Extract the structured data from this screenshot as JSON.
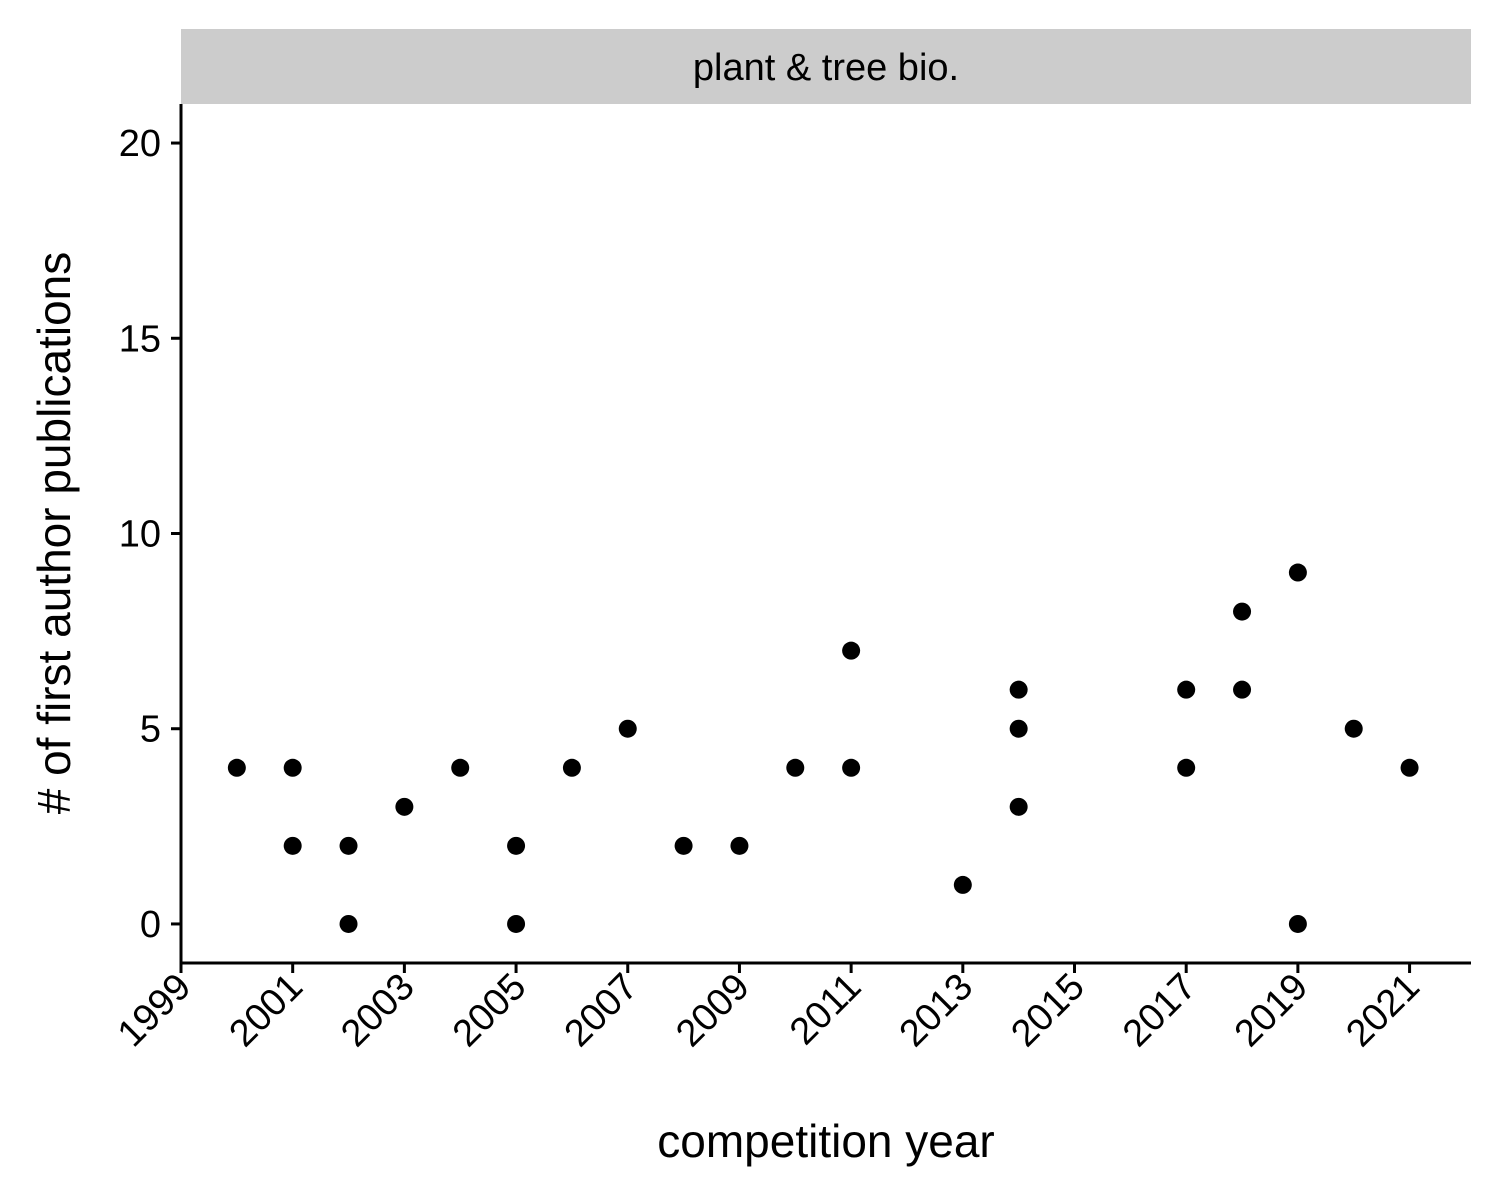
{
  "chart_data": {
    "type": "scatter",
    "facet_title": "plant & tree bio.",
    "xlabel": "competition year",
    "ylabel": "# of first author publications",
    "xlim": [
      1999,
      2022.1
    ],
    "ylim": [
      -1,
      21
    ],
    "x_ticks": [
      1999,
      2001,
      2003,
      2005,
      2007,
      2009,
      2011,
      2013,
      2015,
      2017,
      2019,
      2021
    ],
    "x_tick_labels": [
      "1999",
      "2001",
      "2003",
      "2005",
      "2007",
      "2009",
      "2011",
      "2013",
      "2015",
      "2017",
      "2019",
      "2021"
    ],
    "y_ticks": [
      0,
      5,
      10,
      15,
      20
    ],
    "y_tick_labels": [
      "0",
      "5",
      "10",
      "15",
      "20"
    ],
    "points": [
      {
        "x": 2000,
        "y": 4
      },
      {
        "x": 2001,
        "y": 4
      },
      {
        "x": 2001,
        "y": 2
      },
      {
        "x": 2002,
        "y": 2
      },
      {
        "x": 2002,
        "y": 0
      },
      {
        "x": 2003,
        "y": 3
      },
      {
        "x": 2004,
        "y": 4
      },
      {
        "x": 2005,
        "y": 2
      },
      {
        "x": 2005,
        "y": 0
      },
      {
        "x": 2006,
        "y": 4
      },
      {
        "x": 2007,
        "y": 5
      },
      {
        "x": 2008,
        "y": 2
      },
      {
        "x": 2009,
        "y": 2
      },
      {
        "x": 2010,
        "y": 4
      },
      {
        "x": 2011,
        "y": 7
      },
      {
        "x": 2011,
        "y": 4
      },
      {
        "x": 2013,
        "y": 1
      },
      {
        "x": 2014,
        "y": 6
      },
      {
        "x": 2014,
        "y": 5
      },
      {
        "x": 2014,
        "y": 3
      },
      {
        "x": 2017,
        "y": 6
      },
      {
        "x": 2017,
        "y": 4
      },
      {
        "x": 2018,
        "y": 8
      },
      {
        "x": 2018,
        "y": 6
      },
      {
        "x": 2019,
        "y": 9
      },
      {
        "x": 2019,
        "y": 0
      },
      {
        "x": 2020,
        "y": 5
      },
      {
        "x": 2021,
        "y": 4
      }
    ],
    "point_color": "#000000",
    "strip_color": "#cccccc",
    "grid": false,
    "legend": "none"
  }
}
